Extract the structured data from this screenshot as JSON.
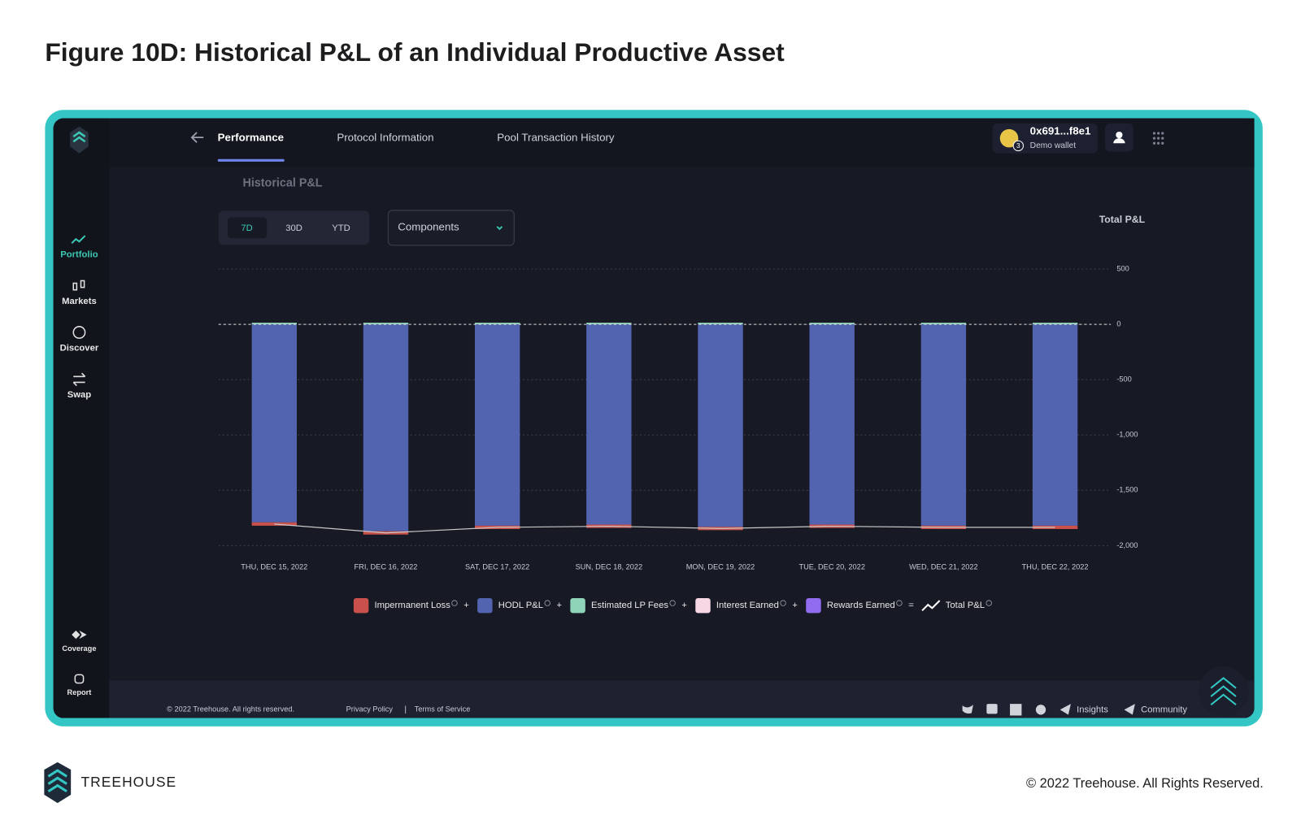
{
  "page_title": "Figure 10D: Historical P&L of an Individual Productive Asset",
  "nav": {
    "tabs": [
      "Performance",
      "Protocol Information",
      "Pool Transaction History"
    ],
    "wallet_address": "0x691...f8e1",
    "wallet_label": "Demo wallet",
    "wallet_badge": "3"
  },
  "sidebar": {
    "items": [
      "Portfolio",
      "Markets",
      "Discover",
      "Swap"
    ],
    "bottom_items": [
      "Coverage",
      "Report"
    ]
  },
  "section_title": "Historical P&L",
  "range_buttons": [
    "7D",
    "30D",
    "YTD"
  ],
  "dropdown": "Components",
  "chart_data": {
    "type": "bar",
    "stacked": true,
    "y_axis_title": "Total P&L",
    "categories": [
      "THU, DEC 15, 2022",
      "FRI, DEC 16, 2022",
      "SAT, DEC 17, 2022",
      "SUN, DEC 18, 2022",
      "MON, DEC 19, 2022",
      "TUE, DEC 20, 2022",
      "WED, DEC 21, 2022",
      "THU, DEC 22, 2022"
    ],
    "series": [
      {
        "name": "Impermanent Loss",
        "color": "#c9504b",
        "values": [
          -30,
          -30,
          -30,
          -30,
          -30,
          -30,
          -30,
          -30
        ]
      },
      {
        "name": "HODL P&L",
        "color": "#5264b0",
        "values": [
          -1790,
          -1870,
          -1820,
          -1810,
          -1830,
          -1810,
          -1820,
          -1820
        ]
      },
      {
        "name": "Estimated LP Fees",
        "color": "#8fd3b8",
        "values": [
          15,
          15,
          15,
          15,
          15,
          15,
          15,
          15
        ]
      },
      {
        "name": "Interest Earned",
        "color": "#f7d7e3",
        "values": [
          0,
          0,
          0,
          0,
          0,
          0,
          0,
          0
        ]
      },
      {
        "name": "Rewards Earned",
        "color": "#8f6cf0",
        "values": [
          0,
          0,
          0,
          0,
          0,
          0,
          0,
          0
        ]
      }
    ],
    "total": {
      "name": "Total P&L",
      "type": "line",
      "color": "#c8c8c8",
      "values": [
        -1805,
        -1885,
        -1835,
        -1825,
        -1845,
        -1825,
        -1835,
        -1835
      ]
    },
    "legend_operators": [
      "+",
      "+",
      "+",
      "+",
      "="
    ],
    "ylim": [
      -2000,
      500
    ],
    "yticks": [
      500,
      0,
      -500,
      {
        "value": -1000,
        "label": "-1,000"
      },
      {
        "value": -1500,
        "label": "-1,500"
      },
      {
        "value": -2000,
        "label": "-2,000"
      }
    ],
    "grid": true
  },
  "footer": {
    "copyright": "© 2022 Treehouse. All rights reserved.",
    "links": [
      "Privacy Policy",
      "Terms of Service"
    ],
    "separator": "|",
    "social_links": [
      "Insights",
      "Community"
    ]
  },
  "brand": "TREEHOUSE",
  "page_copyright": "© 2022 Treehouse. All Rights Reserved."
}
